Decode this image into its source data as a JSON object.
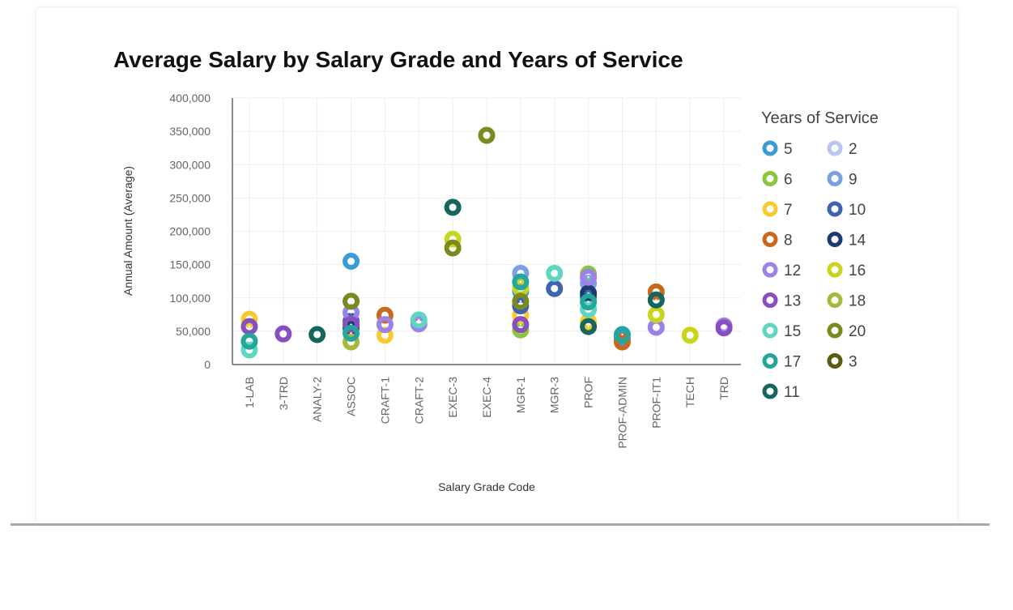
{
  "chart_data": {
    "type": "scatter",
    "title": "Average Salary by Salary Grade and Years of Service",
    "xlabel": "Salary Grade Code",
    "ylabel": "Annual Amount (Average)",
    "ylim": [
      0,
      400000
    ],
    "yticks": [
      0,
      50000,
      100000,
      150000,
      200000,
      250000,
      300000,
      350000,
      400000
    ],
    "ytick_labels": [
      "0",
      "50,000",
      "100,000",
      "150,000",
      "200,000",
      "250,000",
      "300,000",
      "350,000",
      "400,000"
    ],
    "categories": [
      "1-LAB",
      "3-TRD",
      "ANALY-2",
      "ASSOC",
      "CRAFT-1",
      "CRAFT-2",
      "EXEC-3",
      "EXEC-4",
      "MGR-1",
      "MGR-3",
      "PROF",
      "PROF-ADMIN",
      "PROF-IT1",
      "TECH",
      "TRD"
    ],
    "legend_title": "Years of Service",
    "legend_placement": "right",
    "grid": true,
    "series": [
      {
        "name": "5",
        "color": "#3a9bd5",
        "points": [
          [
            "ASSOC",
            155000
          ],
          [
            "MGR-1",
            110000
          ],
          [
            "PROF-ADMIN",
            39000
          ]
        ]
      },
      {
        "name": "2",
        "color": "#b8c8ec",
        "points": []
      },
      {
        "name": "6",
        "color": "#8cc63e",
        "points": [
          [
            "MGR-1",
            52000
          ],
          [
            "PROF",
            136000
          ]
        ]
      },
      {
        "name": "9",
        "color": "#7b9fe0",
        "points": [
          [
            "MGR-1",
            137000
          ],
          [
            "PROF",
            122000
          ]
        ]
      },
      {
        "name": "7",
        "color": "#f7cb2d",
        "points": [
          [
            "1-LAB",
            68000
          ],
          [
            "CRAFT-1",
            44000
          ],
          [
            "MGR-1",
            74000
          ],
          [
            "PROF",
            64000
          ]
        ]
      },
      {
        "name": "10",
        "color": "#3e63b0",
        "points": [
          [
            "ASSOC",
            65000
          ],
          [
            "MGR-1",
            88000
          ],
          [
            "MGR-3",
            114000
          ],
          [
            "PROF",
            102000
          ]
        ]
      },
      {
        "name": "8",
        "color": "#c86a1e",
        "points": [
          [
            "CRAFT-1",
            74000
          ],
          [
            "PROF-ADMIN",
            34000
          ],
          [
            "PROF-IT1",
            109000
          ]
        ]
      },
      {
        "name": "14",
        "color": "#1f3a6e",
        "points": [
          [
            "ASSOC",
            55000
          ],
          [
            "PROF",
            107000
          ]
        ]
      },
      {
        "name": "12",
        "color": "#9b82e8",
        "points": [
          [
            "ASSOC",
            78000
          ],
          [
            "CRAFT-1",
            60000
          ],
          [
            "CRAFT-2",
            61000
          ],
          [
            "PROF",
            131000
          ],
          [
            "PROF-IT1",
            56000
          ],
          [
            "TRD",
            58000
          ]
        ]
      },
      {
        "name": "16",
        "color": "#c9d41c",
        "points": [
          [
            "EXEC-3",
            188000
          ],
          [
            "MGR-1",
            115000
          ],
          [
            "PROF-IT1",
            75000
          ],
          [
            "TECH",
            44000
          ]
        ]
      },
      {
        "name": "13",
        "color": "#8a4fbf",
        "points": [
          [
            "1-LAB",
            57000
          ],
          [
            "3-TRD",
            46000
          ],
          [
            "ASSOC",
            60000
          ],
          [
            "MGR-1",
            60000
          ],
          [
            "TRD",
            55000
          ]
        ]
      },
      {
        "name": "18",
        "color": "#a8b83a",
        "points": [
          [
            "ASSOC",
            34000
          ]
        ]
      },
      {
        "name": "15",
        "color": "#5ed6c0",
        "points": [
          [
            "1-LAB",
            22000
          ],
          [
            "CRAFT-2",
            67000
          ],
          [
            "MGR-3",
            137000
          ],
          [
            "PROF",
            83000
          ]
        ]
      },
      {
        "name": "20",
        "color": "#7a8a1f",
        "points": [
          [
            "ASSOC",
            95000
          ],
          [
            "EXEC-3",
            175000
          ],
          [
            "EXEC-4",
            344000
          ],
          [
            "MGR-1",
            95000
          ]
        ]
      },
      {
        "name": "17",
        "color": "#26a69a",
        "points": [
          [
            "1-LAB",
            35000
          ],
          [
            "ASSOC",
            47000
          ],
          [
            "MGR-1",
            124000
          ],
          [
            "PROF",
            94000
          ],
          [
            "PROF-ADMIN",
            45000
          ]
        ]
      },
      {
        "name": "3",
        "color": "#5a5a10",
        "points": []
      },
      {
        "name": "11",
        "color": "#16665e",
        "points": [
          [
            "ANALY-2",
            45000
          ],
          [
            "EXEC-3",
            236000
          ],
          [
            "PROF",
            57000
          ],
          [
            "PROF-IT1",
            97000
          ]
        ]
      }
    ]
  }
}
